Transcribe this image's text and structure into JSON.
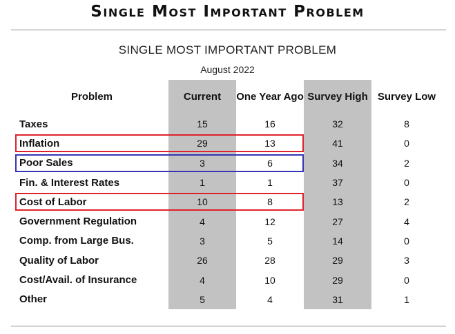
{
  "header": {
    "title": "Single Most Important Problem"
  },
  "table": {
    "subtitle": "SINGLE MOST IMPORTANT PROBLEM",
    "date": "August 2022",
    "columns": [
      "Problem",
      "Current",
      "One Year Ago",
      "Survey High",
      "Survey Low"
    ],
    "rows": [
      {
        "problem": "Taxes",
        "current": "15",
        "year_ago": "16",
        "high": "32",
        "low": "8"
      },
      {
        "problem": "Inflation",
        "current": "29",
        "year_ago": "13",
        "high": "41",
        "low": "0"
      },
      {
        "problem": "Poor Sales",
        "current": "3",
        "year_ago": "6",
        "high": "34",
        "low": "2"
      },
      {
        "problem": "Fin. & Interest Rates",
        "current": "1",
        "year_ago": "1",
        "high": "37",
        "low": "0"
      },
      {
        "problem": "Cost of Labor",
        "current": "10",
        "year_ago": "8",
        "high": "13",
        "low": "2"
      },
      {
        "problem": "Government Regulation",
        "current": "4",
        "year_ago": "12",
        "high": "27",
        "low": "4"
      },
      {
        "problem": "Comp. from Large Bus.",
        "current": "3",
        "year_ago": "5",
        "high": "14",
        "low": "0"
      },
      {
        "problem": "Quality of Labor",
        "current": "26",
        "year_ago": "28",
        "high": "29",
        "low": "3"
      },
      {
        "problem": "Cost/Avail. of Insurance",
        "current": "4",
        "year_ago": "10",
        "high": "29",
        "low": "0"
      },
      {
        "problem": "Other",
        "current": "5",
        "year_ago": "4",
        "high": "31",
        "low": "1"
      }
    ]
  },
  "highlights": [
    {
      "row": "Inflation",
      "color": "#e0202a"
    },
    {
      "row": "Poor Sales",
      "color": "#3434b4"
    },
    {
      "row": "Cost of Labor",
      "color": "#e0202a"
    }
  ]
}
